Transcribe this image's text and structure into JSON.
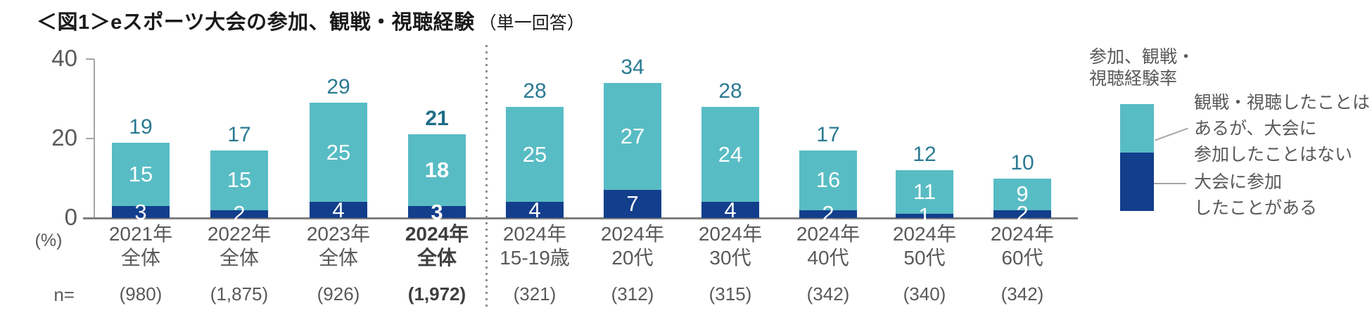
{
  "title": {
    "main": "＜図1＞eスポーツ大会の参加、観戦・視聴経験",
    "sub": "（単一回答）"
  },
  "axis": {
    "unit_label": "(%)",
    "n_prefix": "n=",
    "yticks": [
      "40",
      "20",
      "0"
    ]
  },
  "colors": {
    "viewed": "#58BCC4",
    "participated": "#123E8C",
    "total_label": "#2A7A92",
    "axis_text": "#595959",
    "axis_line": "#A6A6A6",
    "baseline": "#7F7F7F",
    "bar_value_text": "#FFFFFF"
  },
  "chart_data": {
    "type": "bar",
    "stacked": true,
    "title": "＜図1＞eスポーツ大会の参加、観戦・視聴経験（単一回答）",
    "ylabel": "(%)",
    "ylim": [
      0,
      40
    ],
    "yticks": [
      0,
      20,
      40
    ],
    "grid": false,
    "legend_position": "right",
    "group_separator_after_index": 3,
    "categories": [
      {
        "label": [
          "2021年",
          "全体"
        ],
        "n": "(980)",
        "bold": false
      },
      {
        "label": [
          "2022年",
          "全体"
        ],
        "n": "(1,875)",
        "bold": false
      },
      {
        "label": [
          "2023年",
          "全体"
        ],
        "n": "(926)",
        "bold": false
      },
      {
        "label": [
          "2024年",
          "全体"
        ],
        "n": "(1,972)",
        "bold": true
      },
      {
        "label": [
          "2024年",
          "15-19歳"
        ],
        "n": "(321)",
        "bold": false
      },
      {
        "label": [
          "2024年",
          "20代"
        ],
        "n": "(312)",
        "bold": false
      },
      {
        "label": [
          "2024年",
          "30代"
        ],
        "n": "(315)",
        "bold": false
      },
      {
        "label": [
          "2024年",
          "40代"
        ],
        "n": "(342)",
        "bold": false
      },
      {
        "label": [
          "2024年",
          "50代"
        ],
        "n": "(340)",
        "bold": false
      },
      {
        "label": [
          "2024年",
          "60代"
        ],
        "n": "(342)",
        "bold": false
      }
    ],
    "totals": [
      19,
      17,
      29,
      21,
      28,
      34,
      28,
      17,
      12,
      10
    ],
    "series": [
      {
        "name": "観戦・視聴したことはあるが、大会に参加したことはない",
        "color": "#58BCC4",
        "values": [
          15,
          15,
          25,
          18,
          25,
          27,
          24,
          16,
          11,
          9
        ]
      },
      {
        "name": "大会に参加したことがある",
        "color": "#123E8C",
        "values": [
          3,
          2,
          4,
          3,
          4,
          7,
          4,
          2,
          1,
          2
        ]
      }
    ]
  },
  "legend": {
    "header": [
      "参加、観戦・",
      "視聴経験率"
    ],
    "items": [
      {
        "lines": [
          "観戦・視聴したことは",
          "あるが、大会に",
          "参加したことはない"
        ],
        "color": "#58BCC4"
      },
      {
        "lines": [
          "大会に参加",
          "したことがある"
        ],
        "color": "#123E8C"
      }
    ]
  }
}
